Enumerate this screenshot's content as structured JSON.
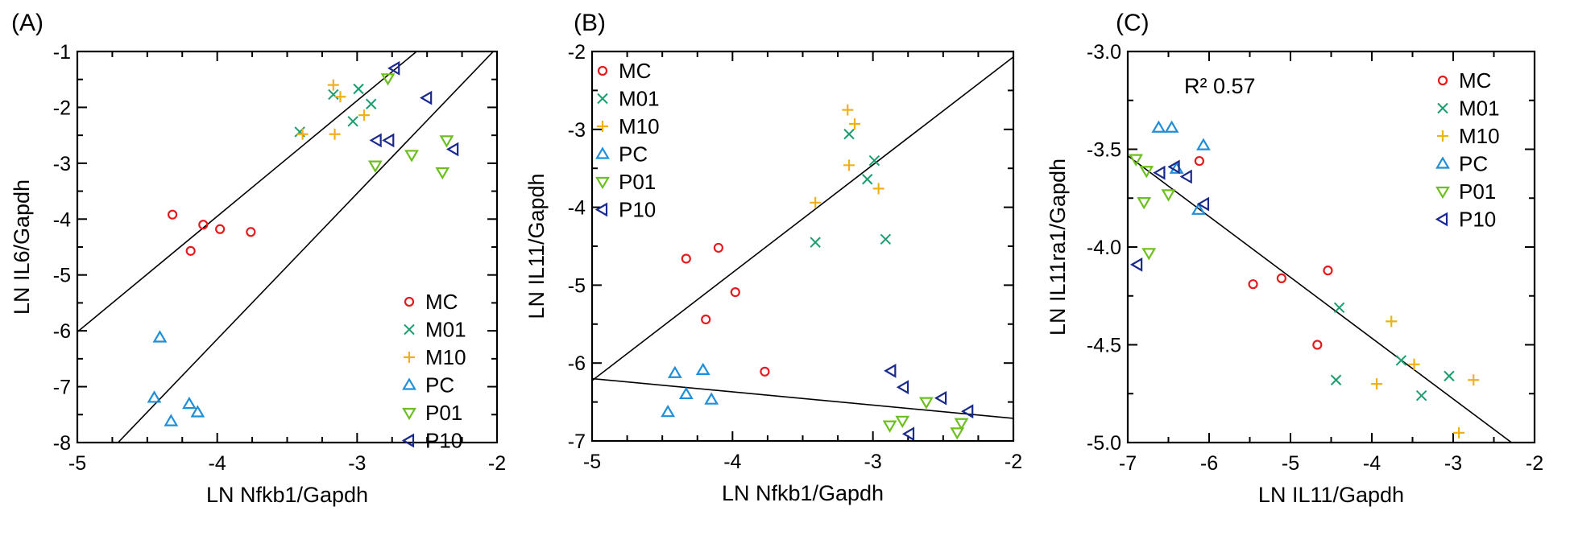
{
  "colors": {
    "MC": "#e41a1c",
    "M01": "#1a9e6e",
    "M10": "#f0b01a",
    "PC": "#1e8fd8",
    "P01": "#6cbf1e",
    "P10": "#1a2a8c"
  },
  "chart_data": [
    {
      "type": "scatter",
      "panel": "(A)",
      "xlabel": "LN Nfkb1/Gapdh",
      "ylabel": "LN IL6/Gapdh",
      "xlim": [
        -5,
        -2
      ],
      "ylim": [
        -8,
        -1
      ],
      "xticks": [
        -5,
        -4,
        -3,
        -2
      ],
      "yticks": [
        -8,
        -7,
        -6,
        -5,
        -4,
        -3,
        -2,
        -1
      ],
      "legend": "bottom-right",
      "annotation": "",
      "series": [
        {
          "name": "MC",
          "marker": "circle",
          "points": [
            [
              -4.32,
              -3.92
            ],
            [
              -4.1,
              -4.1
            ],
            [
              -3.98,
              -4.18
            ],
            [
              -3.76,
              -4.23
            ],
            [
              -4.19,
              -4.57
            ]
          ]
        },
        {
          "name": "M01",
          "marker": "x",
          "points": [
            [
              -3.41,
              -2.44
            ],
            [
              -3.17,
              -1.77
            ],
            [
              -2.99,
              -1.67
            ],
            [
              -2.9,
              -1.94
            ],
            [
              -3.03,
              -2.25
            ]
          ]
        },
        {
          "name": "M10",
          "marker": "plus",
          "points": [
            [
              -3.17,
              -1.6
            ],
            [
              -3.12,
              -1.81
            ],
            [
              -3.39,
              -2.48
            ],
            [
              -3.16,
              -2.48
            ],
            [
              -2.95,
              -2.14
            ]
          ]
        },
        {
          "name": "PC",
          "marker": "tri-up",
          "points": [
            [
              -4.41,
              -6.12
            ],
            [
              -4.45,
              -7.2
            ],
            [
              -4.33,
              -7.62
            ],
            [
              -4.2,
              -7.31
            ],
            [
              -4.14,
              -7.46
            ]
          ]
        },
        {
          "name": "P01",
          "marker": "tri-down",
          "points": [
            [
              -2.78,
              -1.48
            ],
            [
              -2.87,
              -3.04
            ],
            [
              -2.61,
              -2.85
            ],
            [
              -2.36,
              -2.59
            ],
            [
              -2.39,
              -3.16
            ]
          ]
        },
        {
          "name": "P10",
          "marker": "tri-left",
          "points": [
            [
              -2.73,
              -1.3
            ],
            [
              -2.5,
              -1.83
            ],
            [
              -2.86,
              -2.59
            ],
            [
              -2.77,
              -2.59
            ],
            [
              -2.31,
              -2.75
            ]
          ]
        }
      ],
      "fit_lines": [
        {
          "slope": 2.07,
          "intercept": 4.33
        },
        {
          "slope": 2.61,
          "intercept": 4.29
        }
      ]
    },
    {
      "type": "scatter",
      "panel": "(B)",
      "xlabel": "LN Nfkb1/Gapdh",
      "ylabel": "LN IL11/Gapdh",
      "xlim": [
        -5,
        -2
      ],
      "ylim": [
        -7,
        -2
      ],
      "xticks": [
        -5,
        -4,
        -3,
        -2
      ],
      "yticks": [
        -7,
        -6,
        -5,
        -4,
        -3,
        -2
      ],
      "legend": "top-left",
      "annotation": "",
      "series": [
        {
          "name": "MC",
          "marker": "circle",
          "points": [
            [
              -4.33,
              -4.66
            ],
            [
              -4.1,
              -4.52
            ],
            [
              -3.98,
              -5.09
            ],
            [
              -4.19,
              -5.44
            ],
            [
              -3.77,
              -6.11
            ]
          ]
        },
        {
          "name": "M01",
          "marker": "x",
          "points": [
            [
              -3.17,
              -3.06
            ],
            [
              -2.99,
              -3.4
            ],
            [
              -3.04,
              -3.64
            ],
            [
              -3.41,
              -4.45
            ],
            [
              -2.91,
              -4.41
            ]
          ]
        },
        {
          "name": "M10",
          "marker": "plus",
          "points": [
            [
              -3.18,
              -2.75
            ],
            [
              -3.13,
              -2.93
            ],
            [
              -3.17,
              -3.46
            ],
            [
              -2.96,
              -3.76
            ],
            [
              -3.41,
              -3.94
            ]
          ]
        },
        {
          "name": "PC",
          "marker": "tri-up",
          "points": [
            [
              -4.41,
              -6.13
            ],
            [
              -4.21,
              -6.09
            ],
            [
              -4.33,
              -6.4
            ],
            [
              -4.15,
              -6.47
            ],
            [
              -4.46,
              -6.63
            ]
          ]
        },
        {
          "name": "P01",
          "marker": "tri-down",
          "points": [
            [
              -2.62,
              -6.5
            ],
            [
              -2.79,
              -6.74
            ],
            [
              -2.88,
              -6.8
            ],
            [
              -2.37,
              -6.77
            ],
            [
              -2.4,
              -6.89
            ]
          ]
        },
        {
          "name": "P10",
          "marker": "tri-left",
          "points": [
            [
              -2.87,
              -6.1
            ],
            [
              -2.78,
              -6.31
            ],
            [
              -2.51,
              -6.45
            ],
            [
              -2.32,
              -6.62
            ],
            [
              -2.74,
              -6.91
            ]
          ]
        }
      ],
      "fit_lines": [
        {
          "slope": 1.385,
          "intercept": 0.7
        },
        {
          "slope": -0.17,
          "intercept": -7.05
        }
      ]
    },
    {
      "type": "scatter",
      "panel": "(C)",
      "xlabel": "LN IL11/Gapdh",
      "ylabel": "LN IL11ra1/Gapdh",
      "xlim": [
        -7,
        -2
      ],
      "ylim": [
        -5.0,
        -3.0
      ],
      "xticks": [
        -7,
        -6,
        -5,
        -4,
        -3,
        -2
      ],
      "yticks": [
        -5.0,
        -4.5,
        -4.0,
        -3.5,
        -3.0
      ],
      "ytick_labels": [
        "-5.0",
        "-4.5",
        "-4.0",
        "-3.5",
        "-3.0"
      ],
      "legend": "top-right",
      "annotation": "R² 0.57",
      "series": [
        {
          "name": "MC",
          "marker": "circle",
          "points": [
            [
              -6.12,
              -3.56
            ],
            [
              -5.46,
              -4.19
            ],
            [
              -5.11,
              -4.16
            ],
            [
              -4.54,
              -4.12
            ],
            [
              -4.67,
              -4.5
            ]
          ]
        },
        {
          "name": "M01",
          "marker": "x",
          "points": [
            [
              -4.4,
              -4.31
            ],
            [
              -3.64,
              -4.58
            ],
            [
              -4.44,
              -4.68
            ],
            [
              -3.05,
              -4.66
            ],
            [
              -3.39,
              -4.76
            ]
          ]
        },
        {
          "name": "M10",
          "marker": "plus",
          "points": [
            [
              -3.76,
              -4.38
            ],
            [
              -3.48,
              -4.6
            ],
            [
              -3.94,
              -4.7
            ],
            [
              -2.75,
              -4.68
            ],
            [
              -2.93,
              -4.95
            ]
          ]
        },
        {
          "name": "PC",
          "marker": "tri-up",
          "points": [
            [
              -6.62,
              -3.39
            ],
            [
              -6.46,
              -3.39
            ],
            [
              -6.07,
              -3.48
            ],
            [
              -6.4,
              -3.6
            ],
            [
              -6.13,
              -3.81
            ]
          ]
        },
        {
          "name": "P01",
          "marker": "tri-down",
          "points": [
            [
              -6.9,
              -3.55
            ],
            [
              -6.77,
              -3.61
            ],
            [
              -6.5,
              -3.73
            ],
            [
              -6.8,
              -3.77
            ],
            [
              -6.74,
              -4.03
            ]
          ]
        },
        {
          "name": "P10",
          "marker": "tri-left",
          "points": [
            [
              -6.6,
              -3.62
            ],
            [
              -6.42,
              -3.59
            ],
            [
              -6.27,
              -3.64
            ],
            [
              -6.06,
              -3.78
            ],
            [
              -6.88,
              -4.09
            ]
          ]
        }
      ],
      "fit_lines": [
        {
          "slope": -0.311,
          "intercept": -5.71
        }
      ]
    }
  ]
}
